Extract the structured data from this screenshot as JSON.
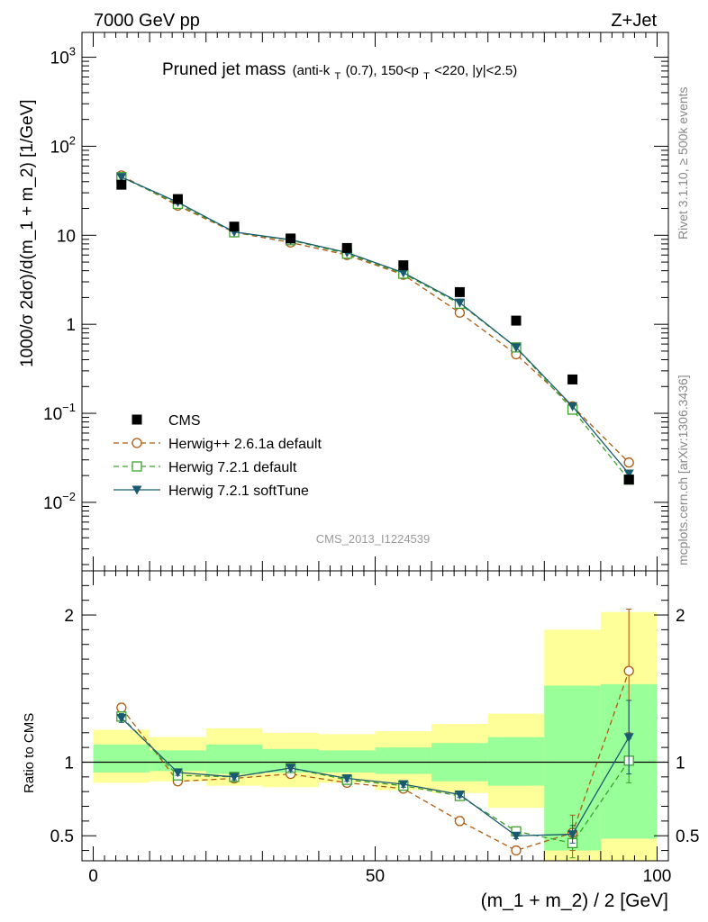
{
  "header": {
    "left_label": "7000 GeV pp",
    "right_label": "Z+Jet"
  },
  "side_labels": {
    "rivet": "Rivet 3.1.10, ≥ 500k events",
    "mcplots": "mcplots.cern.ch [arXiv:1306.3436]"
  },
  "chart_data": {
    "type": "scatter",
    "title": "Pruned jet mass",
    "subtitle_parts": [
      "(anti-k",
      "T",
      "(0.7), 150<p",
      "T",
      "<220, |y|<2.5)"
    ],
    "watermark": "CMS_2013_I1224539",
    "xlabel": "(m_1 + m_2) / 2 [GeV]",
    "ylabel": "1000/σ 2dσ)/d(m_1 + m_2) [1/GeV]",
    "ratio_ylabel": "Ratio to CMS",
    "xlim": [
      -2,
      102
    ],
    "ylim": [
      0.0017,
      1900
    ],
    "yscale": "log",
    "ratio_ylim": [
      0.33,
      2.3
    ],
    "x_ticks": [
      {
        "v": 0,
        "label": "0"
      },
      {
        "v": 50,
        "label": "50"
      },
      {
        "v": 100,
        "label": "100"
      }
    ],
    "y_ticks": [
      {
        "v": 1000,
        "base": "10",
        "exp": "3"
      },
      {
        "v": 100,
        "base": "10",
        "exp": "2"
      },
      {
        "v": 10,
        "base": "10",
        "exp": ""
      },
      {
        "v": 1,
        "base": "1",
        "exp": ""
      },
      {
        "v": 0.1,
        "base": "10",
        "exp": "−1"
      },
      {
        "v": 0.01,
        "base": "10",
        "exp": "−2"
      }
    ],
    "ratio_ticks": [
      {
        "v": 0.5,
        "label": "0.5"
      },
      {
        "v": 1,
        "label": "1"
      },
      {
        "v": 2,
        "label": "2"
      }
    ],
    "x": [
      5,
      15,
      25,
      35,
      45,
      55,
      65,
      75,
      85,
      95
    ],
    "bin_edges": [
      0,
      10,
      20,
      30,
      40,
      50,
      60,
      70,
      80,
      90,
      100
    ],
    "data": {
      "name": "CMS",
      "values": [
        37,
        25.5,
        12.5,
        9.2,
        7.2,
        4.6,
        2.3,
        1.1,
        0.24,
        0.018
      ]
    },
    "series": [
      {
        "name": "Herwig++ 2.6.1a default",
        "color": "#b05a10",
        "marker": "circle",
        "dash": "6,4",
        "values": [
          47,
          21.5,
          10.8,
          8.3,
          6.0,
          3.6,
          1.35,
          0.46,
          0.12,
          0.028
        ],
        "ratio": [
          1.37,
          0.87,
          0.89,
          0.92,
          0.86,
          0.82,
          0.6,
          0.4,
          0.52,
          1.62
        ],
        "ratio_err": [
          0.03,
          0.02,
          0.02,
          0.02,
          0.02,
          0.02,
          0.03,
          0.02,
          0.12,
          0.42
        ]
      },
      {
        "name": "Herwig 7.2.1 default",
        "color": "#3ca02c",
        "marker": "square",
        "dash": "6,4",
        "values": [
          45,
          22.5,
          10.8,
          8.8,
          6.2,
          3.7,
          1.7,
          0.55,
          0.11,
          0.018
        ],
        "ratio": [
          1.31,
          0.91,
          0.9,
          0.96,
          0.88,
          0.84,
          0.77,
          0.53,
          0.45,
          1.01
        ],
        "ratio_err": [
          0.03,
          0.02,
          0.02,
          0.02,
          0.02,
          0.02,
          0.02,
          0.02,
          0.1,
          0.15
        ]
      },
      {
        "name": "Herwig 7.2.1 softTune",
        "color": "#1a5a70",
        "marker": "triangle-down",
        "dash": "",
        "values": [
          45,
          23.5,
          10.9,
          8.9,
          6.4,
          3.8,
          1.75,
          0.55,
          0.12,
          0.021
        ],
        "ratio": [
          1.3,
          0.93,
          0.9,
          0.96,
          0.89,
          0.85,
          0.78,
          0.5,
          0.51,
          1.17
        ],
        "ratio_err": [
          0.03,
          0.02,
          0.02,
          0.02,
          0.02,
          0.02,
          0.02,
          0.02,
          0.06,
          0.25
        ]
      }
    ],
    "bands": {
      "yellow_color": "#ffff99",
      "green_color": "#99ff99",
      "yellow": [
        [
          0.86,
          1.22
        ],
        [
          0.87,
          1.17
        ],
        [
          0.84,
          1.23
        ],
        [
          0.83,
          1.2
        ],
        [
          0.86,
          1.19
        ],
        [
          0.81,
          1.21
        ],
        [
          0.79,
          1.26
        ],
        [
          0.69,
          1.33
        ],
        [
          0.33,
          1.9
        ],
        [
          0.33,
          2.02
        ]
      ],
      "green": [
        [
          0.93,
          1.12
        ],
        [
          0.94,
          1.08
        ],
        [
          0.92,
          1.12
        ],
        [
          0.93,
          1.09
        ],
        [
          0.93,
          1.08
        ],
        [
          0.92,
          1.1
        ],
        [
          0.87,
          1.13
        ],
        [
          0.84,
          1.17
        ],
        [
          0.4,
          1.52
        ],
        [
          0.48,
          1.53
        ]
      ]
    },
    "legend_position": "lower-left"
  }
}
